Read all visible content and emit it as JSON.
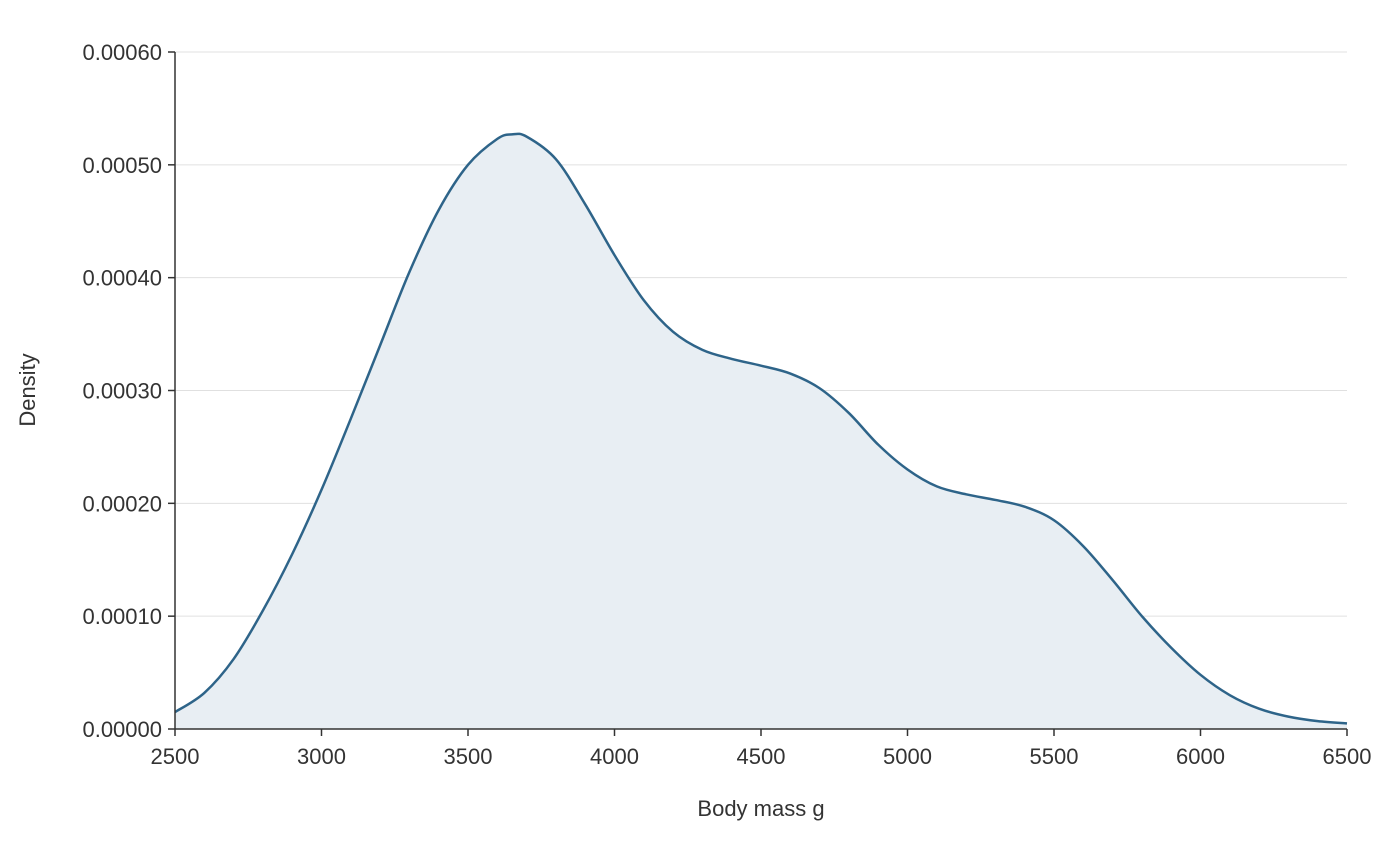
{
  "chart_data": {
    "type": "area",
    "title": "",
    "xlabel": "Body mass g",
    "ylabel": "Density",
    "xlim": [
      2500,
      6500
    ],
    "ylim": [
      0,
      0.0006
    ],
    "x_ticks": [
      2500,
      3000,
      3500,
      4000,
      4500,
      5000,
      5500,
      6000,
      6500
    ],
    "x_tick_labels": [
      "2500",
      "3000",
      "3500",
      "4000",
      "4500",
      "5000",
      "5500",
      "6000",
      "6500"
    ],
    "y_ticks": [
      0,
      0.0001,
      0.0002,
      0.0003,
      0.0004,
      0.0005,
      0.0006
    ],
    "y_tick_labels": [
      "0.00000",
      "0.00010",
      "0.00020",
      "0.00030",
      "0.00040",
      "0.00050",
      "0.00060"
    ],
    "grid": "horizontal",
    "line_color": "#2e6489",
    "fill_color": "#e8eef3",
    "series": [
      {
        "x": [
          2500,
          2600,
          2700,
          2800,
          2900,
          3000,
          3100,
          3200,
          3300,
          3400,
          3500,
          3600,
          3650,
          3700,
          3800,
          3900,
          4000,
          4100,
          4200,
          4300,
          4400,
          4500,
          4600,
          4700,
          4800,
          4900,
          5000,
          5100,
          5200,
          5300,
          5400,
          5500,
          5600,
          5700,
          5800,
          5900,
          6000,
          6100,
          6200,
          6300,
          6400,
          6500
        ],
        "y": [
          1.5e-05,
          3.2e-05,
          6.2e-05,
          0.000105,
          0.000155,
          0.000212,
          0.000275,
          0.00034,
          0.000405,
          0.00046,
          0.0005,
          0.000523,
          0.000527,
          0.000525,
          0.000505,
          0.000465,
          0.00042,
          0.00038,
          0.000352,
          0.000336,
          0.000328,
          0.000322,
          0.000315,
          0.000302,
          0.00028,
          0.000252,
          0.00023,
          0.000215,
          0.000208,
          0.000203,
          0.000197,
          0.000185,
          0.000162,
          0.000132,
          0.0001,
          7.2e-05,
          4.8e-05,
          3e-05,
          1.8e-05,
          1.1e-05,
          7e-06,
          5e-06
        ]
      }
    ]
  }
}
